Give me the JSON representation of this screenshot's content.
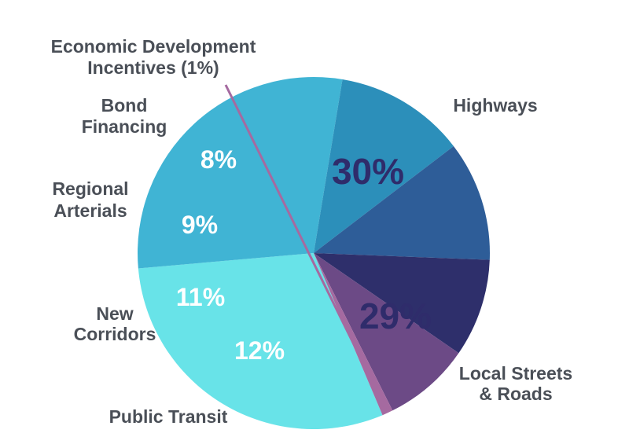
{
  "chart_data": {
    "type": "pie",
    "slices": [
      {
        "label": "Highways",
        "label_lines": [
          "Highways"
        ],
        "value": 30,
        "value_label": "30%",
        "color": "#68e3e8",
        "text_color": "#2f2c6b"
      },
      {
        "label": "Local Streets & Roads",
        "label_lines": [
          "Local Streets",
          "& Roads"
        ],
        "value": 29,
        "value_label": "29%",
        "color": "#40b4d4",
        "text_color": "#2f2c6b"
      },
      {
        "label": "Public Transit",
        "label_lines": [
          "Public Transit"
        ],
        "value": 12,
        "value_label": "12%",
        "color": "#2c8fba",
        "text_color": "#ffffff"
      },
      {
        "label": "New Corridors",
        "label_lines": [
          "New",
          "Corridors"
        ],
        "value": 11,
        "value_label": "11%",
        "color": "#2e5d98",
        "text_color": "#ffffff"
      },
      {
        "label": "Regional Arterials",
        "label_lines": [
          "Regional",
          "Arterials"
        ],
        "value": 9,
        "value_label": "9%",
        "color": "#2e2f6b",
        "text_color": "#ffffff"
      },
      {
        "label": "Bond Financing",
        "label_lines": [
          "Bond",
          "Financing"
        ],
        "value": 8,
        "value_label": "8%",
        "color": "#6c4a86",
        "text_color": "#ffffff"
      },
      {
        "label": "Economic Development Incentives (1%)",
        "label_lines": [
          "Economic Development",
          "Incentives (1%)"
        ],
        "value": 1,
        "value_label": "",
        "color": "#a56aa0",
        "text_color": "#ffffff"
      }
    ]
  }
}
